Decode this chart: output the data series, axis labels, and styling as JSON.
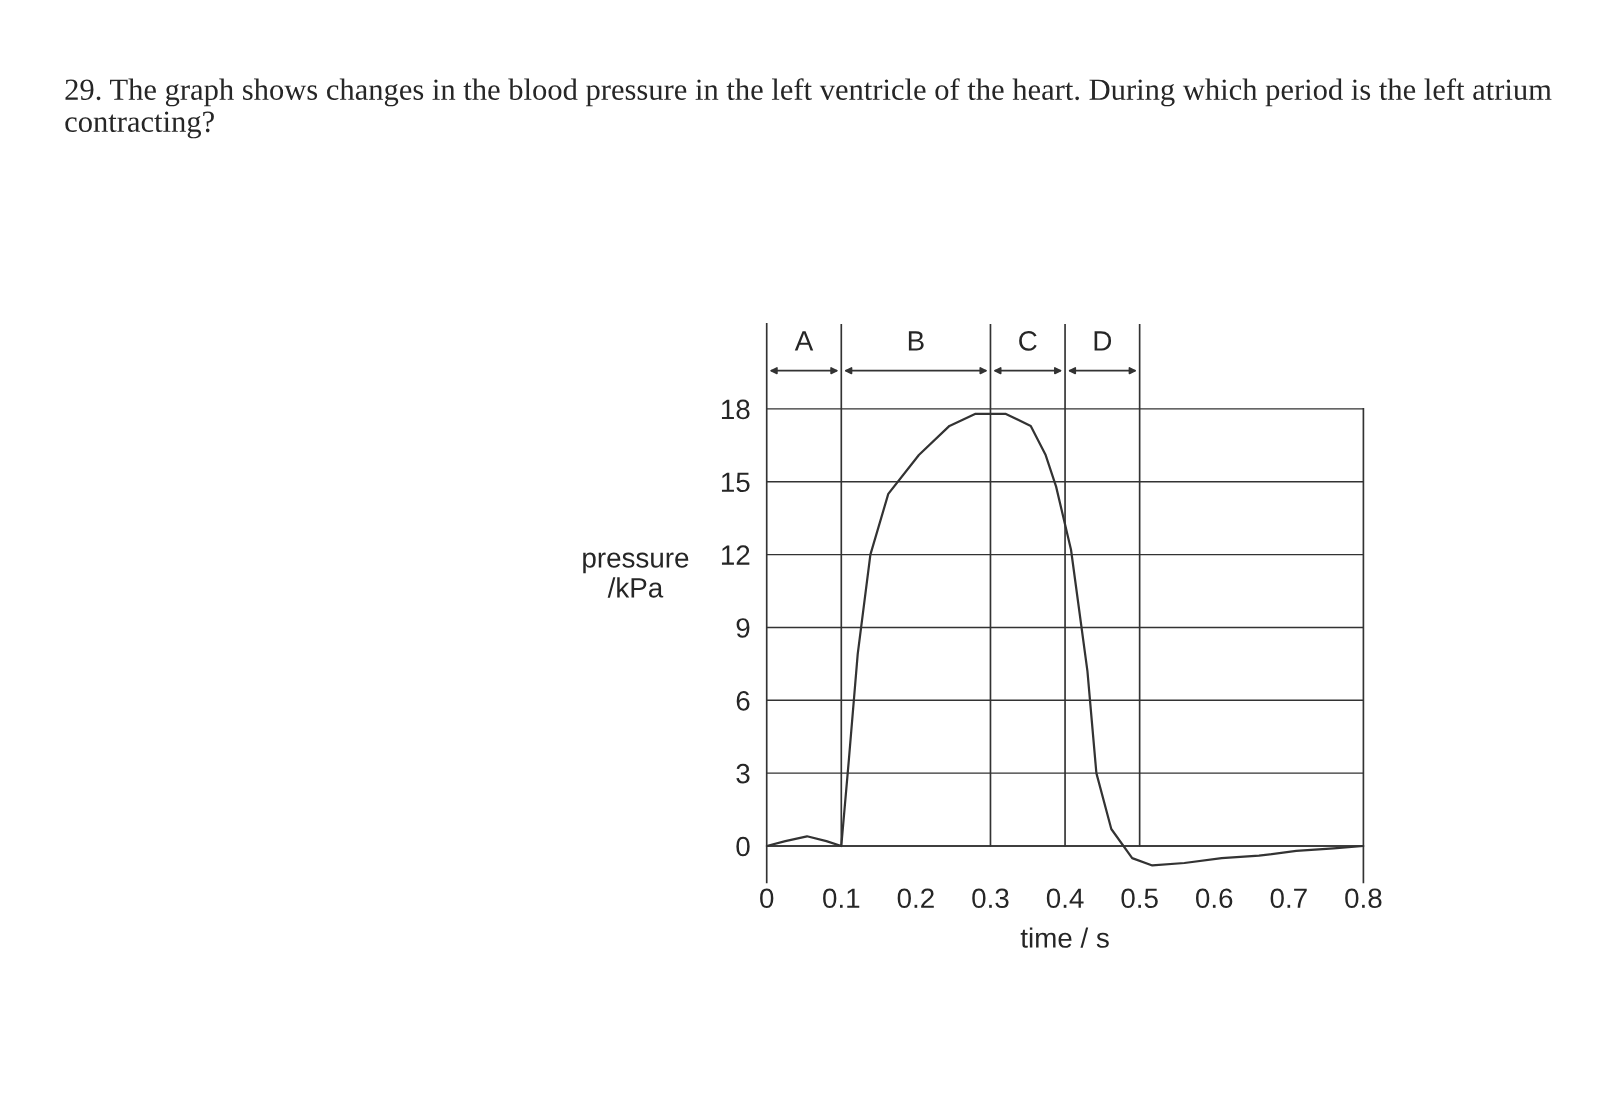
{
  "chart_data": {
    "type": "line",
    "title": "29. The graph shows changes in the blood pressure in the left ventricle of the heart. During which period is the left atrium contracting?",
    "xlabel": "time / s",
    "ylabel": "pressure\n/kPa",
    "xlim": [
      0,
      0.8
    ],
    "xticks": [
      0,
      0.1,
      0.2,
      0.3,
      0.4,
      0.5,
      0.6,
      0.7,
      0.8
    ],
    "ylim": [
      -1.5,
      21.5
    ],
    "yticks": [
      0,
      3,
      6,
      9,
      12,
      15,
      18
    ],
    "grid": "y",
    "marker": "none",
    "line_style": "solid",
    "series": [
      {
        "color": "#333333",
        "x": [
          0,
          0.025,
          0.054,
          0.08,
          0.1,
          0.11,
          0.122,
          0.139,
          0.163,
          0.204,
          0.245,
          0.28,
          0.32,
          0.354,
          0.374,
          0.388,
          0.408,
          0.43,
          0.442,
          0.462,
          0.49,
          0.517,
          0.56,
          0.61,
          0.66,
          0.71,
          0.76,
          0.8
        ],
        "values": [
          0,
          0.2,
          0.4,
          0.2,
          0,
          3.5,
          7.9,
          12,
          14.5,
          16.1,
          17.3,
          17.8,
          17.8,
          17.3,
          16.1,
          14.8,
          12.2,
          7.2,
          3,
          0.7,
          -0.5,
          -0.8,
          -0.7,
          -0.5,
          -0.4,
          -0.2,
          -0.1,
          0
        ]
      }
    ],
    "ref_lines": [
      {
        "axis": "x",
        "value": 0.1
      },
      {
        "axis": "x",
        "value": 0.3
      },
      {
        "axis": "x",
        "value": 0.4
      },
      {
        "axis": "x",
        "value": 0.5
      }
    ],
    "annotations": [
      "A",
      "B",
      "C",
      "D"
    ]
  }
}
